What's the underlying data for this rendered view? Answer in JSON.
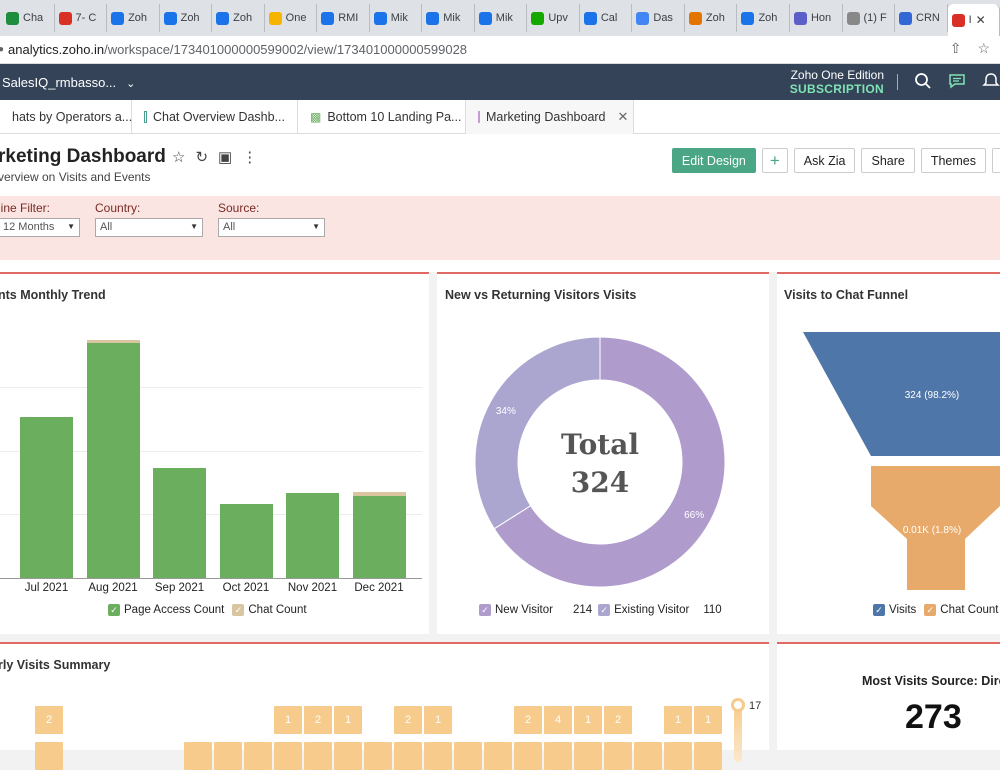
{
  "browser": {
    "tabs": [
      {
        "label": "Cha",
        "color": "#1e8e3e"
      },
      {
        "label": "7- C",
        "color": "#d93025"
      },
      {
        "label": "Zoh",
        "color": "#1a73e8"
      },
      {
        "label": "Zoh",
        "color": "#1a73e8"
      },
      {
        "label": "Zoh",
        "color": "#1a73e8"
      },
      {
        "label": "One",
        "color": "#f4b400"
      },
      {
        "label": "RMI",
        "color": "#1a73e8"
      },
      {
        "label": "Mik",
        "color": "#1a73e8"
      },
      {
        "label": "Mik",
        "color": "#1a73e8"
      },
      {
        "label": "Mik",
        "color": "#1a73e8"
      },
      {
        "label": "Upv",
        "color": "#14a800"
      },
      {
        "label": "Cal",
        "color": "#1a73e8"
      },
      {
        "label": "Das",
        "color": "#4285f4"
      },
      {
        "label": "Zoh",
        "color": "#e37400"
      },
      {
        "label": "Zoh",
        "color": "#1a73e8"
      },
      {
        "label": "Hon",
        "color": "#5b5fc7"
      },
      {
        "label": "(1) F",
        "color": "#888888"
      },
      {
        "label": "CRN",
        "color": "#3367d6"
      },
      {
        "label": "I",
        "color": "#d93025",
        "active": true
      }
    ],
    "url_host": "analytics.zoho.in",
    "url_path": "/workspace/173401000000599002/view/173401000000599028"
  },
  "app": {
    "workspace": "SalesIQ_rmbasso...",
    "edition": "Zoho One Edition",
    "subscription": "SUBSCRIPTION"
  },
  "report_tabs": [
    {
      "label": "hats by Operators a..."
    },
    {
      "label": "Chat Overview Dashb..."
    },
    {
      "label": "Bottom 10 Landing Pa..."
    },
    {
      "label": "Marketing Dashboard",
      "active": true
    }
  ],
  "dashboard": {
    "title": "rketing Dashboard",
    "subtitle": "verview on Visits and Events",
    "actions": {
      "edit": "Edit Design",
      "plus": "+",
      "zia": "Ask Zia",
      "share": "Share",
      "themes": "Themes"
    }
  },
  "filters": [
    {
      "label": "line Filter:",
      "value": "12 Months"
    },
    {
      "label": "Country:",
      "value": "All"
    },
    {
      "label": "Source:",
      "value": "All"
    }
  ],
  "panels": {
    "trend_title": "nts Monthly Trend",
    "donut_title": "New vs Returning Visitors Visits",
    "funnel_title": "Visits to Chat Funnel",
    "summary_title": "rly Visits Summary",
    "kpi_title": "Most Visits Source: Direc",
    "kpi_value": "273"
  },
  "chart_data": [
    {
      "type": "bar",
      "categories": [
        "Jul 2021",
        "Aug 2021",
        "Sep 2021",
        "Oct 2021",
        "Nov 2021",
        "Dec 2021"
      ],
      "series": [
        {
          "name": "Page Access Count",
          "color": "#6aae5e",
          "values": [
            57,
            83,
            39,
            26,
            30,
            29
          ]
        },
        {
          "name": "Chat Count",
          "color": "#d9c6a0",
          "values": [
            0,
            1,
            0,
            0,
            0,
            1.5
          ]
        }
      ]
    },
    {
      "type": "pie",
      "labels": [
        "New Visitor",
        "Existing Visitor"
      ],
      "values": [
        214,
        110
      ],
      "percent_labels": [
        "66%",
        "34%"
      ],
      "colors": [
        "#b09ccc",
        "#aaa6d0"
      ],
      "center_label": "Total",
      "center_value": "324"
    },
    {
      "type": "bar",
      "categories": [
        "Visits",
        "Chat Count"
      ],
      "values": [
        324,
        6
      ],
      "data_labels": [
        "324 (98.2%)",
        "0.01K (1.8%)"
      ],
      "colors": [
        "#4f76a8",
        "#e8aa6a"
      ]
    },
    {
      "type": "heatmap",
      "max_label": "17",
      "cells": [
        "2",
        "1",
        "2",
        "1",
        "2",
        "1",
        "2",
        "4",
        "1",
        "2",
        "1",
        "1"
      ]
    }
  ]
}
